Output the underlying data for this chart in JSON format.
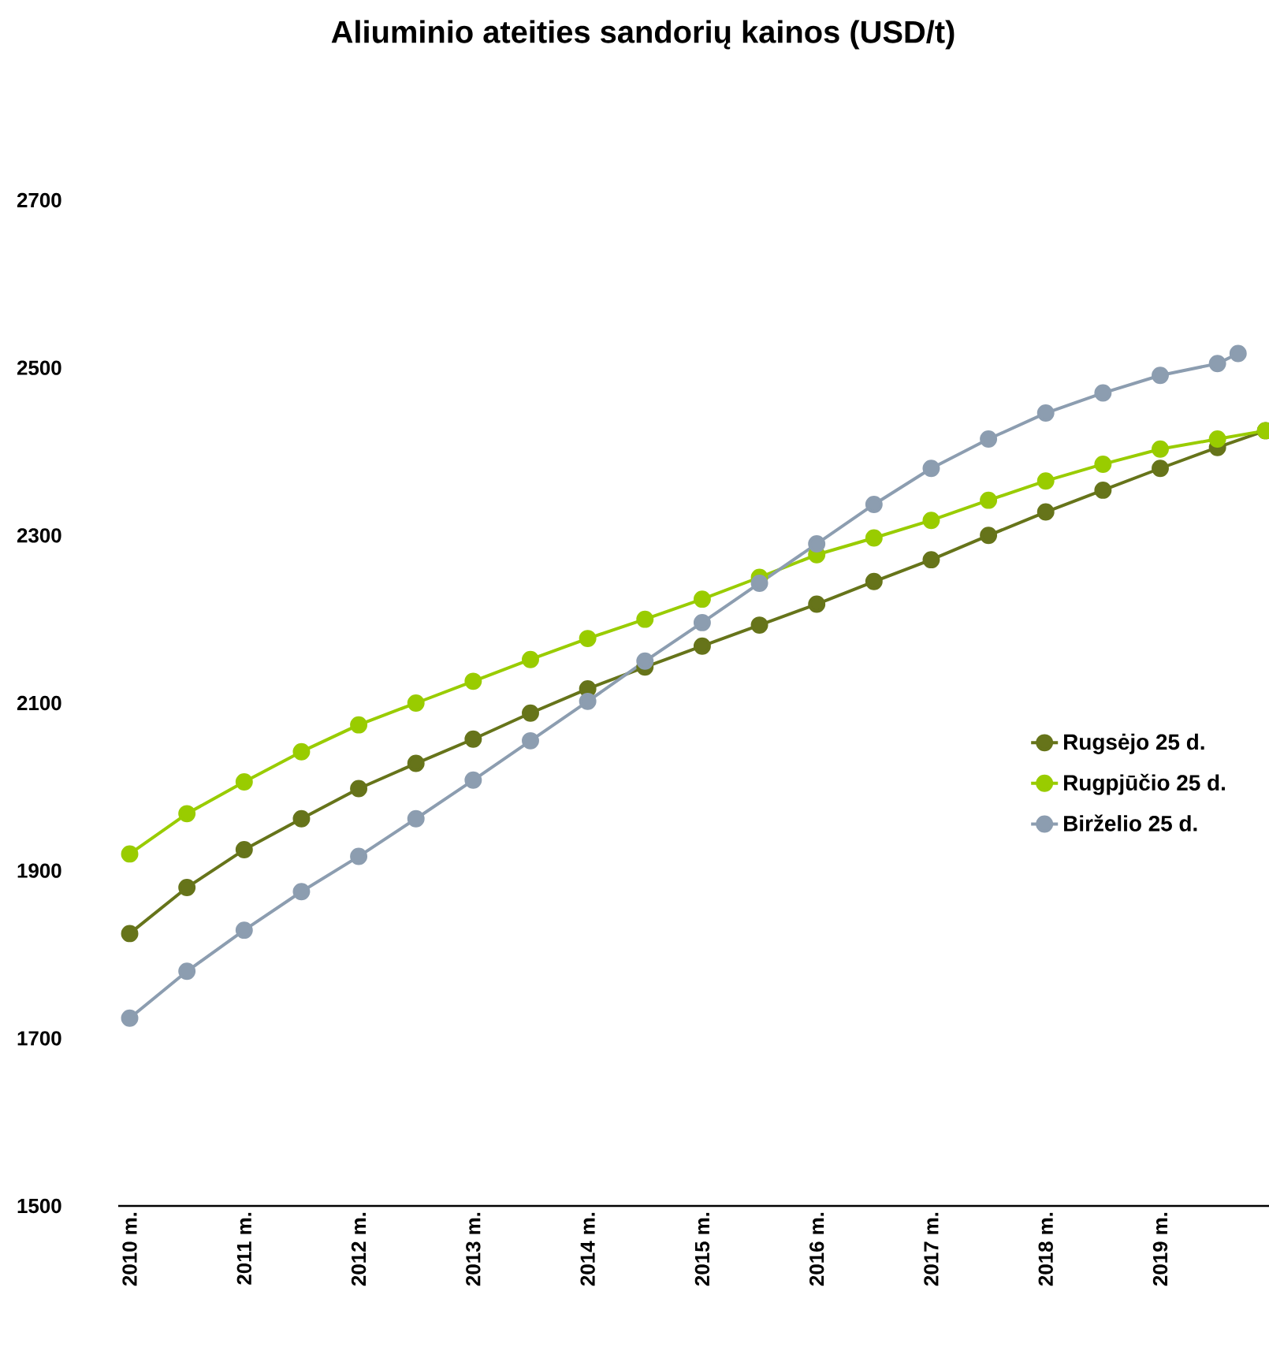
{
  "chart_data": {
    "type": "line",
    "title": "Aliuminio ateities sandorių kainos (USD/t)",
    "xlim": [
      2009.9,
      2019.95
    ],
    "ylim": [
      1500,
      2700
    ],
    "xticks": [
      {
        "value": 2010,
        "label": "2010 m."
      },
      {
        "value": 2011,
        "label": "2011 m."
      },
      {
        "value": 2012,
        "label": "2012 m."
      },
      {
        "value": 2013,
        "label": "2013 m."
      },
      {
        "value": 2014,
        "label": "2014 m."
      },
      {
        "value": 2015,
        "label": "2015 m."
      },
      {
        "value": 2016,
        "label": "2016 m."
      },
      {
        "value": 2017,
        "label": "2017 m."
      },
      {
        "value": 2018,
        "label": "2018 m."
      },
      {
        "value": 2019,
        "label": "2019 m."
      }
    ],
    "yticks": [
      1500,
      1700,
      1900,
      2100,
      2300,
      2500,
      2700
    ],
    "grid": false,
    "legend": "right",
    "marker": "circle",
    "line_style": "solid",
    "x": [
      2010,
      2010.5,
      2011,
      2011.5,
      2012,
      2012.5,
      2013,
      2013.5,
      2014,
      2014.5,
      2015,
      2015.5,
      2016,
      2016.5,
      2017,
      2017.5,
      2018,
      2018.5,
      2019,
      2019.5,
      2019.92
    ],
    "series": [
      {
        "name": "Rugsėjo 25 d.",
        "color": "#66741a",
        "values": [
          1825,
          1880,
          1925,
          1962,
          1998,
          2028,
          2057,
          2088,
          2117,
          2143,
          2168,
          2193,
          2218,
          2245,
          2271,
          2300,
          2328,
          2354,
          2380,
          2405,
          2425
        ]
      },
      {
        "name": "Rugpjūčio 25 d.",
        "color": "#99cc00",
        "values": [
          1920,
          1968,
          2006,
          2042,
          2074,
          2100,
          2126,
          2152,
          2177,
          2200,
          2224,
          2250,
          2277,
          2297,
          2318,
          2342,
          2365,
          2385,
          2403,
          2415,
          2425
        ]
      },
      {
        "name": "Birželio 25 d.",
        "color": "#8c9db0",
        "x": [
          2010,
          2010.5,
          2011,
          2011.5,
          2012,
          2012.5,
          2013,
          2013.5,
          2014,
          2014.5,
          2015,
          2015.5,
          2016,
          2016.5,
          2017,
          2017.5,
          2018,
          2018.5,
          2019,
          2019.5,
          2019.68
        ],
        "values": [
          1724,
          1780,
          1829,
          1875,
          1917,
          1962,
          2008,
          2055,
          2102,
          2150,
          2196,
          2243,
          2290,
          2337,
          2380,
          2415,
          2446,
          2470,
          2491,
          2505,
          2517
        ]
      }
    ]
  }
}
